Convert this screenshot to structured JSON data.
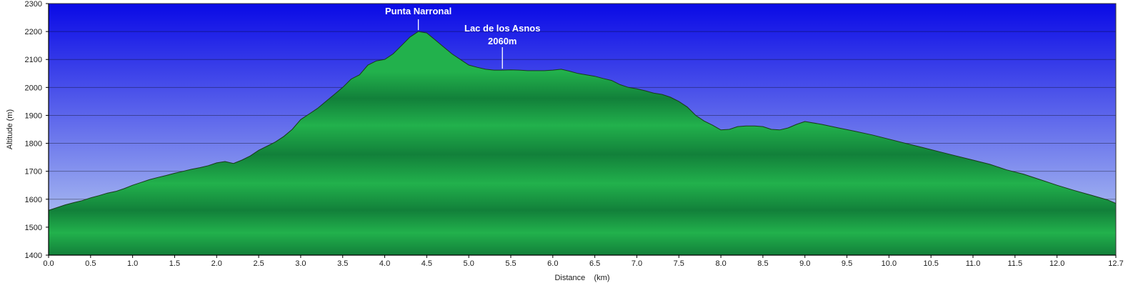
{
  "chart_data": {
    "type": "area",
    "xlabel": "Distance    (km)",
    "ylabel": "Altitude (m)",
    "xlim": [
      0,
      12.7
    ],
    "ylim": [
      1400,
      2300
    ],
    "x_ticks": [
      "0.0",
      "0.5",
      "1.0",
      "1.5",
      "2.0",
      "2.5",
      "3.0",
      "3.5",
      "4.0",
      "4.5",
      "5.0",
      "5.5",
      "6.0",
      "6.5",
      "7.0",
      "7.5",
      "8.0",
      "8.5",
      "9.0",
      "9.5",
      "10.0",
      "10.5",
      "11.0",
      "11.5",
      "12.0",
      "12.7"
    ],
    "x_tick_values": [
      0,
      0.5,
      1.0,
      1.5,
      2.0,
      2.5,
      3.0,
      3.5,
      4.0,
      4.5,
      5.0,
      5.5,
      6.0,
      6.5,
      7.0,
      7.5,
      8.0,
      8.5,
      9.0,
      9.5,
      10.0,
      10.5,
      11.0,
      11.5,
      12.0,
      12.7
    ],
    "y_ticks": [
      "1400",
      "1500",
      "1600",
      "1700",
      "1800",
      "1900",
      "2000",
      "2100",
      "2200",
      "2300"
    ],
    "y_tick_values": [
      1400,
      1500,
      1600,
      1700,
      1800,
      1900,
      2000,
      2100,
      2200,
      2300
    ],
    "grid": "horizontal",
    "colors": {
      "sky_top": "#0a0ae6",
      "sky_bottom": "#c3d8f2",
      "terrain_light": "#22b14c",
      "terrain_dark": "#12803a",
      "outline": "#1a3a1a",
      "annotation": "#ffffff"
    },
    "series": [
      {
        "x": [
          0.0,
          0.1,
          0.2,
          0.3,
          0.4,
          0.5,
          0.6,
          0.7,
          0.8,
          0.9,
          1.0,
          1.1,
          1.2,
          1.3,
          1.4,
          1.5,
          1.6,
          1.7,
          1.8,
          1.9,
          2.0,
          2.1,
          2.2,
          2.3,
          2.4,
          2.5,
          2.6,
          2.7,
          2.8,
          2.9,
          3.0,
          3.1,
          3.2,
          3.3,
          3.4,
          3.5,
          3.6,
          3.7,
          3.8,
          3.9,
          4.0,
          4.1,
          4.2,
          4.3,
          4.4,
          4.5,
          4.6,
          4.7,
          4.8,
          4.9,
          5.0,
          5.1,
          5.2,
          5.3,
          5.4,
          5.5,
          5.6,
          5.7,
          5.8,
          5.9,
          6.0,
          6.1,
          6.2,
          6.3,
          6.4,
          6.5,
          6.6,
          6.7,
          6.8,
          6.9,
          7.0,
          7.1,
          7.2,
          7.3,
          7.4,
          7.5,
          7.6,
          7.7,
          7.8,
          7.9,
          8.0,
          8.1,
          8.2,
          8.3,
          8.4,
          8.5,
          8.6,
          8.7,
          8.8,
          8.9,
          9.0,
          9.2,
          9.4,
          9.6,
          9.8,
          10.0,
          10.2,
          10.4,
          10.6,
          10.8,
          11.0,
          11.2,
          11.4,
          11.6,
          11.8,
          12.0,
          12.2,
          12.4,
          12.6,
          12.7
        ],
        "values": [
          1560,
          1570,
          1580,
          1588,
          1595,
          1605,
          1613,
          1622,
          1628,
          1638,
          1650,
          1660,
          1670,
          1678,
          1685,
          1693,
          1700,
          1707,
          1713,
          1720,
          1730,
          1735,
          1728,
          1740,
          1755,
          1775,
          1790,
          1805,
          1825,
          1850,
          1885,
          1905,
          1925,
          1950,
          1975,
          2000,
          2030,
          2045,
          2080,
          2095,
          2100,
          2120,
          2150,
          2180,
          2200,
          2195,
          2170,
          2145,
          2120,
          2100,
          2080,
          2072,
          2065,
          2062,
          2062,
          2063,
          2062,
          2060,
          2060,
          2060,
          2062,
          2065,
          2058,
          2050,
          2045,
          2040,
          2032,
          2025,
          2010,
          2000,
          1995,
          1988,
          1980,
          1975,
          1965,
          1950,
          1930,
          1900,
          1880,
          1865,
          1848,
          1850,
          1860,
          1862,
          1862,
          1860,
          1850,
          1848,
          1855,
          1868,
          1878,
          1868,
          1855,
          1843,
          1830,
          1815,
          1800,
          1785,
          1770,
          1755,
          1740,
          1725,
          1705,
          1690,
          1670,
          1650,
          1632,
          1615,
          1598,
          1585
        ]
      }
    ],
    "annotations": [
      {
        "label": "Punta Narronal",
        "x": 4.4,
        "y": 2200
      },
      {
        "label": "Lac de los Asnos",
        "sublabel": "2060m",
        "x": 5.4,
        "y": 2062
      }
    ]
  }
}
